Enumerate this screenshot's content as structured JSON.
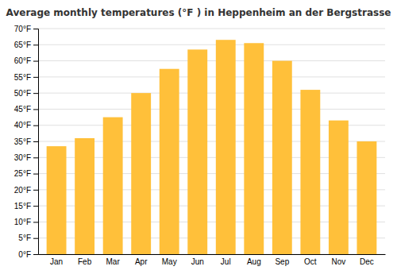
{
  "chart_data": {
    "type": "bar",
    "title": "Average monthly temperatures (°F ) in Heppenheim an der Bergstrasse",
    "categories": [
      "Jan",
      "Feb",
      "Mar",
      "Apr",
      "May",
      "Jun",
      "Jul",
      "Aug",
      "Sep",
      "Oct",
      "Nov",
      "Dec"
    ],
    "values": [
      33.5,
      36,
      42.5,
      50,
      57.5,
      63.5,
      66.5,
      65.5,
      60,
      51,
      41.5,
      35
    ],
    "color": "#FFC03A",
    "ylim": [
      0,
      70
    ],
    "yticks": [
      {
        "value": 0,
        "label": "0°F"
      },
      {
        "value": 5,
        "label": "5°F"
      },
      {
        "value": 10,
        "label": "10°F"
      },
      {
        "value": 15,
        "label": "15°F"
      },
      {
        "value": 20,
        "label": "20°F"
      },
      {
        "value": 25,
        "label": "25°F"
      },
      {
        "value": 30,
        "label": "30°F"
      },
      {
        "value": 35,
        "label": "35°F"
      },
      {
        "value": 40,
        "label": "40°F"
      },
      {
        "value": 45,
        "label": "45°F"
      },
      {
        "value": 50,
        "label": "50°F"
      },
      {
        "value": 55,
        "label": "55°F"
      },
      {
        "value": 60,
        "label": "60°F"
      },
      {
        "value": 65,
        "label": "65°F"
      },
      {
        "value": 70,
        "label": "70°F"
      }
    ],
    "grid": true
  }
}
